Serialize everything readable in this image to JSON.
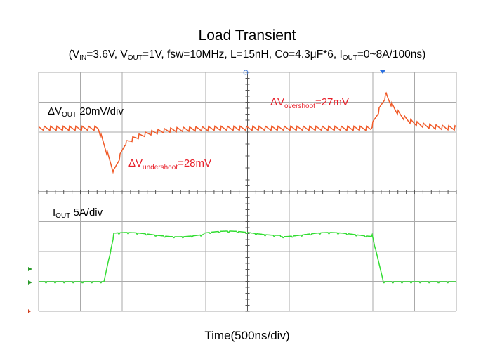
{
  "title": "Load Transient",
  "subtitle": [
    "(V",
    "IN",
    "=3.6V,  V",
    "OUT",
    "=1V,  fsw=10MHz, L=15nH, Co=4.3μF*6,   I",
    "OUT",
    "=0~8A/100ns)"
  ],
  "vout_label": [
    "ΔV",
    "OUT",
    "  20mV/div"
  ],
  "overshoot": [
    "ΔV",
    "overshoot",
    "=27mV"
  ],
  "undershoot": [
    "ΔV",
    "undershoot",
    "=28mV"
  ],
  "iout_label": [
    "I",
    "OUT",
    "   5A/div"
  ],
  "xlabel": "Time(500ns/div)"
}
